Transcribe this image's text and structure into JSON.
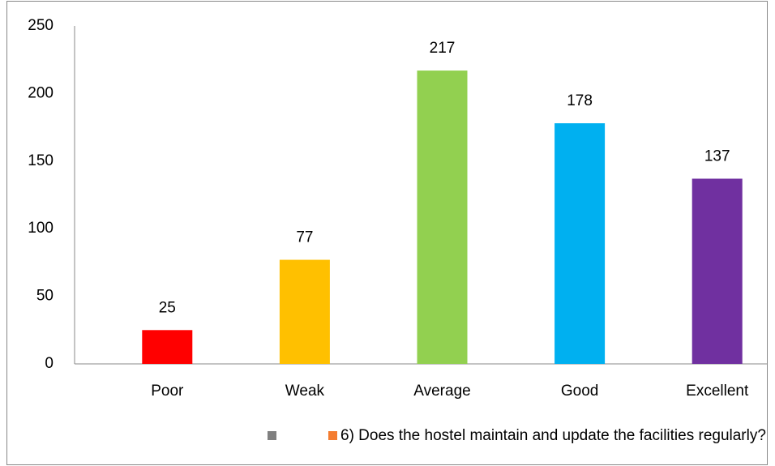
{
  "chart_data": {
    "type": "bar",
    "categories": [
      "Poor",
      "Weak",
      "Average",
      "Good",
      "Excellent"
    ],
    "series": [
      {
        "name": "6) Does the hostel maintain and update the facilities regularly?",
        "color": "#f47c30",
        "values": [
          25,
          77,
          217,
          178,
          137
        ],
        "colors": [
          "#ff0000",
          "#ffc000",
          "#92d050",
          "#00b0f0",
          "#7030a0"
        ]
      }
    ],
    "ylim": [
      0,
      250
    ],
    "yticks": [
      0,
      50,
      100,
      150,
      200,
      250
    ],
    "grid": false,
    "legend": "bottom"
  }
}
